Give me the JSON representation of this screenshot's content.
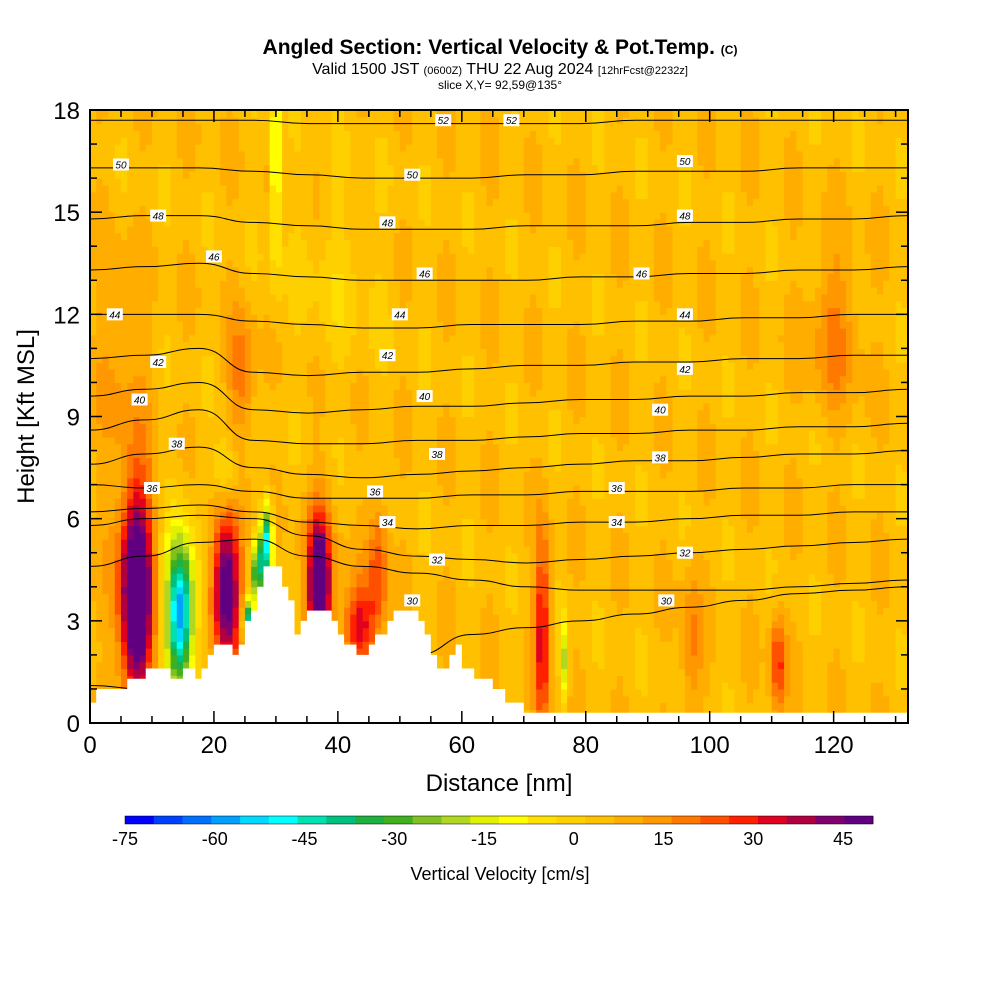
{
  "header": {
    "title_main": "Angled Section: Vertical Velocity & Pot.Temp.",
    "title_unit": "(C)",
    "valid_prefix": "Valid 1500 JST",
    "valid_utc": "(0600Z)",
    "valid_date": "THU 22 Aug 2024",
    "forecast_info": "[12hrFcst@2232z]",
    "slice_info": "slice X,Y= 92,59@135°"
  },
  "chart_data": {
    "type": "heatmap",
    "xlabel": "Distance [nm]",
    "ylabel": "Height [Kft MSL]",
    "xlim": [
      0,
      132
    ],
    "ylim": [
      0,
      18
    ],
    "xticks": [
      0,
      20,
      40,
      60,
      80,
      100,
      120
    ],
    "yticks": [
      0,
      3,
      6,
      9,
      12,
      15,
      18
    ],
    "background_velocity": 5,
    "colorbar": {
      "label": "Vertical Velocity [cm/s]",
      "ticks": [
        -75,
        -60,
        -45,
        -30,
        -15,
        0,
        15,
        30,
        45
      ],
      "min": -75,
      "max": 50,
      "colors": [
        "#0000ff",
        "#0040ff",
        "#0070ff",
        "#00a0ff",
        "#00d8ff",
        "#00ffff",
        "#00e0b0",
        "#00c080",
        "#20b040",
        "#40b020",
        "#80c020",
        "#b0d820",
        "#e0f000",
        "#ffff00",
        "#ffe000",
        "#ffd000",
        "#ffc000",
        "#ffae00",
        "#ff9800",
        "#ff7800",
        "#ff5000",
        "#ff2000",
        "#e00020",
        "#b00040",
        "#800070",
        "#600080"
      ]
    },
    "terrain": [
      [
        0,
        0.6
      ],
      [
        1,
        0.6
      ],
      [
        1,
        1.0
      ],
      [
        2,
        1.0
      ],
      [
        2,
        1.0
      ],
      [
        3,
        1.0
      ],
      [
        4,
        1.0
      ],
      [
        5,
        1.0
      ],
      [
        6,
        1.3
      ],
      [
        7,
        1.3
      ],
      [
        8,
        1.3
      ],
      [
        9,
        1.6
      ],
      [
        10,
        1.6
      ],
      [
        11,
        1.6
      ],
      [
        12,
        1.6
      ],
      [
        13,
        1.3
      ],
      [
        14,
        1.3
      ],
      [
        15,
        1.6
      ],
      [
        16,
        1.6
      ],
      [
        17,
        1.3
      ],
      [
        18,
        1.6
      ],
      [
        19,
        2.0
      ],
      [
        20,
        2.3
      ],
      [
        21,
        2.3
      ],
      [
        22,
        2.3
      ],
      [
        23,
        2.0
      ],
      [
        24,
        2.3
      ],
      [
        25,
        3.0
      ],
      [
        26,
        3.3
      ],
      [
        27,
        4.0
      ],
      [
        28,
        4.6
      ],
      [
        29,
        4.6
      ],
      [
        30,
        4.6
      ],
      [
        31,
        4.0
      ],
      [
        32,
        3.6
      ],
      [
        33,
        2.6
      ],
      [
        34,
        3.0
      ],
      [
        35,
        3.3
      ],
      [
        36,
        3.3
      ],
      [
        37,
        3.3
      ],
      [
        38,
        3.3
      ],
      [
        39,
        3.0
      ],
      [
        40,
        2.6
      ],
      [
        41,
        2.3
      ],
      [
        42,
        2.3
      ],
      [
        43,
        2.0
      ],
      [
        44,
        2.0
      ],
      [
        45,
        2.3
      ],
      [
        46,
        2.6
      ],
      [
        47,
        2.6
      ],
      [
        48,
        3.0
      ],
      [
        49,
        3.3
      ],
      [
        50,
        3.3
      ],
      [
        51,
        3.3
      ],
      [
        52,
        3.3
      ],
      [
        53,
        3.0
      ],
      [
        54,
        2.6
      ],
      [
        55,
        2.0
      ],
      [
        56,
        1.6
      ],
      [
        57,
        1.6
      ],
      [
        58,
        2.0
      ],
      [
        59,
        2.3
      ],
      [
        60,
        1.6
      ],
      [
        61,
        1.6
      ],
      [
        62,
        1.3
      ],
      [
        63,
        1.3
      ],
      [
        64,
        1.3
      ],
      [
        65,
        1.0
      ],
      [
        66,
        1.0
      ],
      [
        67,
        0.6
      ],
      [
        68,
        0.6
      ],
      [
        69,
        0.6
      ],
      [
        70,
        0.3
      ],
      [
        71,
        0.3
      ],
      [
        72,
        0.3
      ],
      [
        80,
        0.3
      ],
      [
        90,
        0.3
      ],
      [
        100,
        0.3
      ],
      [
        110,
        0.3
      ],
      [
        120,
        0.3
      ],
      [
        132,
        0.3
      ]
    ],
    "velocity_cells": [
      {
        "x": 7.5,
        "y": 3.8,
        "sx": 1.5,
        "sy": 1.8,
        "v": 48
      },
      {
        "x": 7.5,
        "y": 3.8,
        "sx": 2.5,
        "sy": 2.6,
        "v": 30
      },
      {
        "x": 14.5,
        "y": 3.2,
        "sx": 1.3,
        "sy": 1.3,
        "v": -38
      },
      {
        "x": 14.5,
        "y": 3.4,
        "sx": 2.2,
        "sy": 1.9,
        "v": -20
      },
      {
        "x": 22,
        "y": 4.0,
        "sx": 1.4,
        "sy": 1.4,
        "v": 35
      },
      {
        "x": 22,
        "y": 4.0,
        "sx": 2.4,
        "sy": 2.0,
        "v": 22
      },
      {
        "x": 37,
        "y": 4.0,
        "sx": 1.0,
        "sy": 1.1,
        "v": 48
      },
      {
        "x": 37,
        "y": 4.0,
        "sx": 1.8,
        "sy": 1.8,
        "v": 30
      },
      {
        "x": 43.5,
        "y": 2.8,
        "sx": 1.8,
        "sy": 0.9,
        "v": 32
      },
      {
        "x": 46.5,
        "y": 4.6,
        "sx": 1.2,
        "sy": 1.4,
        "v": 24
      },
      {
        "x": 73,
        "y": 2.7,
        "sx": 0.9,
        "sy": 2.0,
        "v": 34
      },
      {
        "x": 76.5,
        "y": 1.8,
        "sx": 0.5,
        "sy": 0.9,
        "v": -18
      },
      {
        "x": 111,
        "y": 1.7,
        "sx": 0.9,
        "sy": 1.1,
        "v": 28
      },
      {
        "x": 97,
        "y": 2.2,
        "sx": 1.2,
        "sy": 1.7,
        "v": 18
      },
      {
        "x": 22,
        "y": 7.3,
        "sx": 1.3,
        "sy": 0.8,
        "v": -12
      },
      {
        "x": 24.5,
        "y": 10.2,
        "sx": 1.5,
        "sy": 1.3,
        "v": 20
      },
      {
        "x": 30,
        "y": 17.0,
        "sx": 0.6,
        "sy": 1.4,
        "v": -12
      },
      {
        "x": 30,
        "y": 15.0,
        "sx": 0.6,
        "sy": 2.0,
        "v": -8
      },
      {
        "x": 120,
        "y": 11.5,
        "sx": 3.0,
        "sy": 1.6,
        "v": 17
      },
      {
        "x": 28.5,
        "y": 5.3,
        "sx": 0.7,
        "sy": 0.8,
        "v": -50
      },
      {
        "x": 25.5,
        "y": 3.0,
        "sx": 0.6,
        "sy": 0.5,
        "v": -45
      },
      {
        "x": 27,
        "y": 4.5,
        "sx": 0.6,
        "sy": 0.6,
        "v": -40
      },
      {
        "x": 5,
        "y": 10.5,
        "sx": 3,
        "sy": 2.5,
        "v": 12
      },
      {
        "x": 40,
        "y": 13,
        "sx": 5,
        "sy": 2,
        "v": 0
      }
    ],
    "isentrope_heights": [
      [
        1.1,
        1.0,
        0.9,
        1.0,
        1.2,
        1.5,
        2.0,
        2.6,
        2.8,
        3.0,
        3.2,
        3.4,
        3.6,
        3.8,
        3.9,
        4.0
      ],
      [
        4.6,
        4.9,
        5.3,
        5.4,
        4.9,
        4.6,
        4.4,
        4.2,
        4.0,
        3.9,
        3.9,
        3.9,
        3.9,
        4.0,
        4.1,
        4.2
      ],
      [
        5.8,
        6.0,
        6.1,
        6.0,
        5.5,
        5.1,
        4.9,
        4.8,
        4.7,
        4.8,
        4.9,
        5.0,
        5.1,
        5.2,
        5.3,
        5.4
      ],
      [
        6.2,
        6.3,
        6.4,
        6.2,
        5.9,
        5.8,
        5.7,
        5.8,
        5.8,
        5.9,
        5.9,
        6.0,
        6.1,
        6.1,
        6.2,
        6.2
      ],
      [
        7.0,
        6.9,
        7.0,
        6.8,
        6.6,
        6.6,
        6.6,
        6.7,
        6.7,
        6.8,
        6.8,
        6.8,
        6.9,
        6.9,
        7.0,
        7.0
      ],
      [
        7.6,
        7.9,
        8.1,
        7.5,
        7.3,
        7.2,
        7.3,
        7.4,
        7.5,
        7.6,
        7.7,
        7.7,
        7.8,
        7.9,
        7.9,
        8.0
      ],
      [
        8.6,
        8.9,
        9.2,
        8.3,
        8.2,
        8.2,
        8.3,
        8.3,
        8.4,
        8.5,
        8.5,
        8.6,
        8.6,
        8.7,
        8.7,
        8.8
      ],
      [
        9.6,
        9.8,
        10.0,
        9.2,
        9.1,
        9.2,
        9.3,
        9.3,
        9.4,
        9.5,
        9.5,
        9.6,
        9.6,
        9.7,
        9.7,
        9.8
      ],
      [
        10.7,
        10.8,
        11.0,
        10.3,
        10.2,
        10.3,
        10.3,
        10.4,
        10.5,
        10.5,
        10.6,
        10.6,
        10.7,
        10.7,
        10.8,
        10.8
      ],
      [
        12.0,
        12.0,
        12.0,
        11.8,
        11.7,
        11.6,
        11.6,
        11.7,
        11.7,
        11.7,
        11.8,
        11.8,
        11.9,
        11.9,
        12.0,
        12.0
      ],
      [
        13.3,
        13.4,
        13.5,
        13.2,
        13.1,
        13.0,
        13.0,
        13.0,
        13.0,
        13.1,
        13.1,
        13.2,
        13.2,
        13.3,
        13.3,
        13.4
      ],
      [
        14.8,
        14.9,
        14.9,
        14.7,
        14.6,
        14.5,
        14.5,
        14.5,
        14.6,
        14.6,
        14.6,
        14.7,
        14.7,
        14.8,
        14.8,
        14.9
      ],
      [
        16.3,
        16.3,
        16.3,
        16.2,
        16.1,
        16.0,
        16.0,
        16.0,
        16.1,
        16.1,
        16.2,
        16.2,
        16.2,
        16.3,
        16.3,
        16.3
      ],
      [
        17.7,
        17.7,
        17.7,
        17.7,
        17.6,
        17.6,
        17.6,
        17.6,
        17.6,
        17.6,
        17.7,
        17.7,
        17.7,
        17.7,
        17.7,
        17.7
      ]
    ],
    "contour_labels": [
      {
        "text": "52",
        "x": 57,
        "y": 17.7
      },
      {
        "text": "52",
        "x": 68,
        "y": 17.7
      },
      {
        "text": "50",
        "x": 5,
        "y": 16.4
      },
      {
        "text": "50",
        "x": 52,
        "y": 16.1
      },
      {
        "text": "50",
        "x": 96,
        "y": 16.5
      },
      {
        "text": "48",
        "x": 11,
        "y": 14.9
      },
      {
        "text": "48",
        "x": 48,
        "y": 14.7
      },
      {
        "text": "48",
        "x": 96,
        "y": 14.9
      },
      {
        "text": "46",
        "x": 20,
        "y": 13.7
      },
      {
        "text": "46",
        "x": 54,
        "y": 13.2
      },
      {
        "text": "46",
        "x": 89,
        "y": 13.2
      },
      {
        "text": "44",
        "x": 4,
        "y": 12.0
      },
      {
        "text": "44",
        "x": 50,
        "y": 12.0
      },
      {
        "text": "44",
        "x": 96,
        "y": 12.0
      },
      {
        "text": "42",
        "x": 11,
        "y": 10.6
      },
      {
        "text": "42",
        "x": 48,
        "y": 10.8
      },
      {
        "text": "42",
        "x": 96,
        "y": 10.4
      },
      {
        "text": "40",
        "x": 8,
        "y": 9.5
      },
      {
        "text": "40",
        "x": 54,
        "y": 9.6
      },
      {
        "text": "40",
        "x": 92,
        "y": 9.2
      },
      {
        "text": "38",
        "x": 14,
        "y": 8.2
      },
      {
        "text": "38",
        "x": 56,
        "y": 7.9
      },
      {
        "text": "38",
        "x": 92,
        "y": 7.8
      },
      {
        "text": "36",
        "x": 10,
        "y": 6.9
      },
      {
        "text": "36",
        "x": 46,
        "y": 6.8
      },
      {
        "text": "36",
        "x": 85,
        "y": 6.9
      },
      {
        "text": "34",
        "x": 48,
        "y": 5.9
      },
      {
        "text": "34",
        "x": 85,
        "y": 5.9
      },
      {
        "text": "32",
        "x": 56,
        "y": 4.8
      },
      {
        "text": "32",
        "x": 96,
        "y": 5.0
      },
      {
        "text": "30",
        "x": 52,
        "y": 3.6
      },
      {
        "text": "30",
        "x": 93,
        "y": 3.6
      }
    ]
  }
}
